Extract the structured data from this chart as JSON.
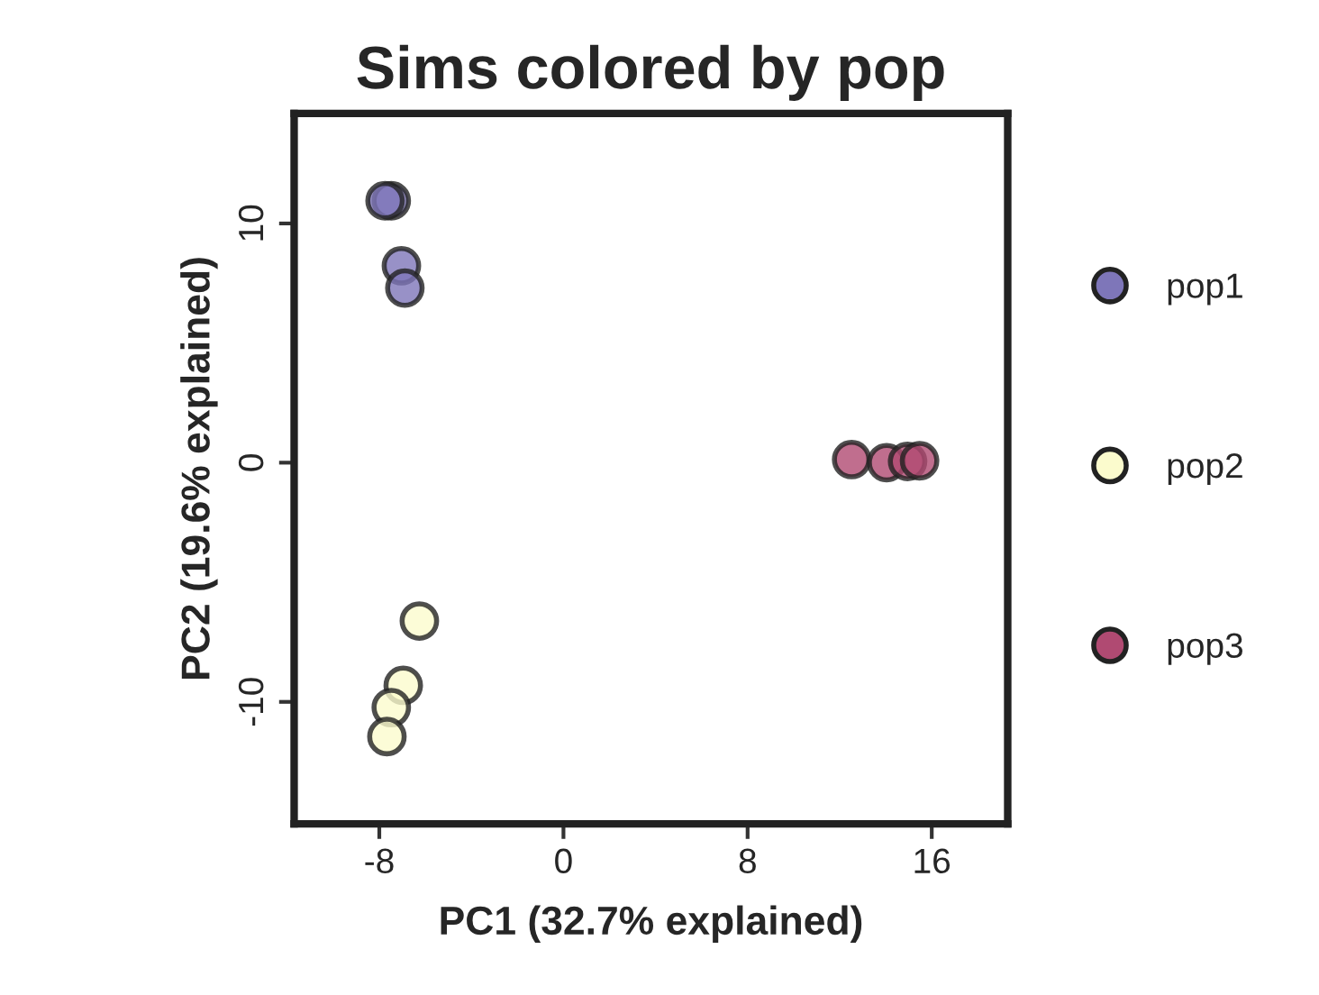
{
  "chart_data": {
    "type": "scatter",
    "title": "Sims colored by pop",
    "xlabel": "PC1 (32.7% explained)",
    "ylabel": "PC2 (19.6% explained)",
    "xlim": [
      -11.7,
      19.3
    ],
    "xticks": [
      -8,
      0,
      8,
      16
    ],
    "ylim": [
      -15.1,
      14.6
    ],
    "yticks": [
      -10,
      0,
      10
    ],
    "grid": false,
    "legend": "right",
    "marker": "circle",
    "series": [
      {
        "name": "pop1",
        "color": "#7e76b9",
        "x": [
          -7.48,
          -7.75,
          -7.04,
          -6.89
        ],
        "values": [
          10.95,
          10.95,
          8.23,
          7.3
        ]
      },
      {
        "name": "pop2",
        "color": "#fbfbcd",
        "x": [
          -6.26,
          -6.96,
          -7.48,
          -7.67
        ],
        "values": [
          -6.62,
          -9.31,
          -10.24,
          -11.45
        ]
      },
      {
        "name": "pop3",
        "color": "#b04a72",
        "x": [
          12.52,
          14.04,
          14.95,
          15.47
        ],
        "values": [
          0.13,
          0.0,
          0.05,
          0.08
        ]
      }
    ]
  }
}
